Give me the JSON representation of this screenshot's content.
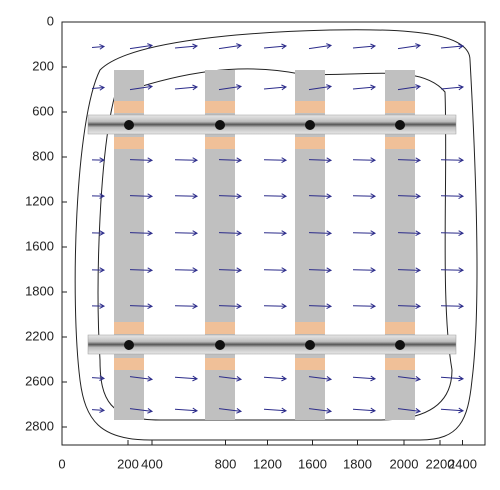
{
  "chart_data": {
    "type": "vector_field",
    "xlim": [
      0,
      2820
    ],
    "ylim": [
      0,
      2820
    ],
    "y_inverted": true,
    "xticks": [
      0,
      {
        "value": 440,
        "label": "200"
      },
      {
        "value": 600,
        "label": "400"
      },
      {
        "value": 1090,
        "label": "800"
      },
      {
        "value": 1370,
        "label": "1200"
      },
      {
        "value": 1670,
        "label": "1600"
      },
      {
        "value": 1970,
        "label": "1800"
      },
      {
        "value": 2280,
        "label": "2000"
      },
      {
        "value": 2520,
        "label": "2200"
      },
      {
        "value": 2670,
        "label": "2400"
      }
    ],
    "yticks": [
      0,
      {
        "value": 300,
        "label": "200"
      },
      {
        "value": 600,
        "label": "600"
      },
      {
        "value": 900,
        "label": "800"
      },
      {
        "value": 1200,
        "label": "1200"
      },
      {
        "value": 1500,
        "label": "1600"
      },
      {
        "value": 1800,
        "label": "1800"
      },
      {
        "value": 2100,
        "label": "2200"
      },
      {
        "value": 2400,
        "label": "2600"
      },
      {
        "value": 2700,
        "label": "2800"
      }
    ],
    "arrow_color": "#2b2b8a"
  }
}
